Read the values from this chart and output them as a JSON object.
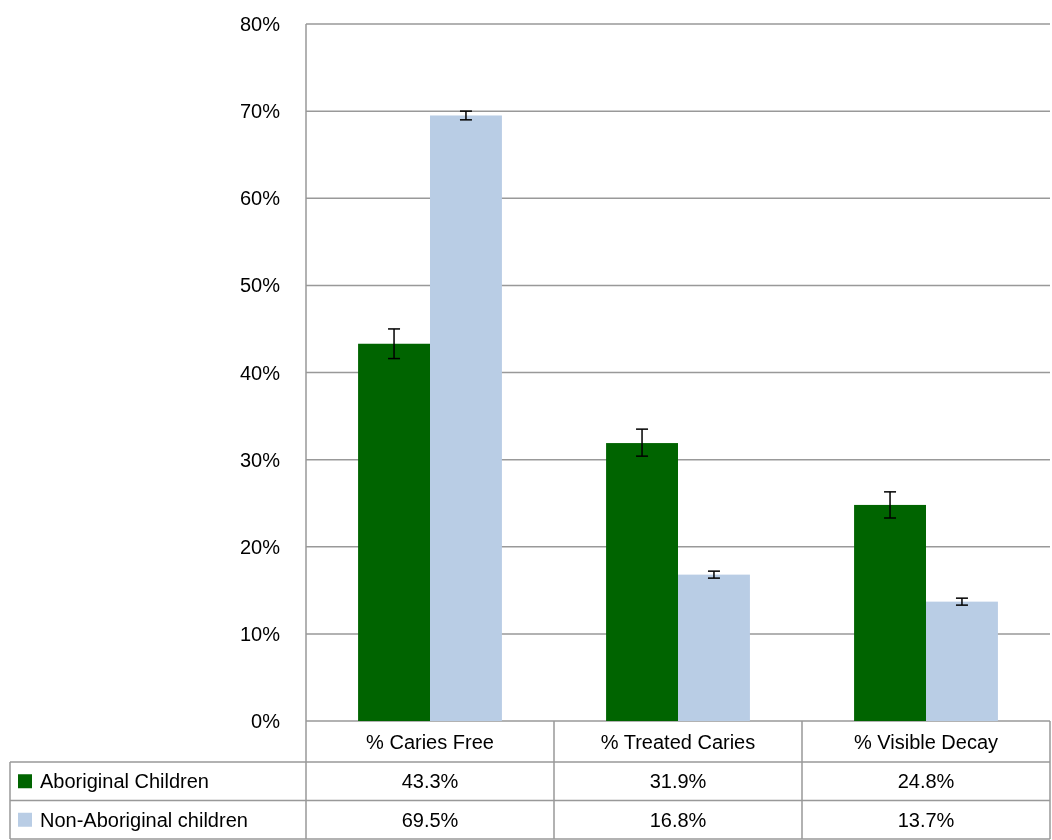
{
  "chart_data": {
    "type": "bar",
    "categories": [
      "% Caries Free",
      "% Treated Caries",
      "% Visible Decay"
    ],
    "series": [
      {
        "name": "Aboriginal Children",
        "color": "#006400",
        "values": [
          43.3,
          31.9,
          24.8
        ],
        "errors": [
          1.7,
          [
            30.4,
            33.5
          ],
          1.5
        ],
        "value_labels": [
          "43.3%",
          "31.9%",
          "24.8%"
        ]
      },
      {
        "name": "Non-Aboriginal children",
        "color": "#b9cde5",
        "values": [
          69.5,
          16.8,
          13.7
        ],
        "errors": [
          0.5,
          0.4,
          0.4
        ],
        "value_labels": [
          "69.5%",
          "16.8%",
          "13.7%"
        ]
      }
    ],
    "ylim": [
      0,
      80
    ],
    "yticks": [
      {
        "value": 0,
        "label": "0%"
      },
      {
        "value": 10,
        "label": "10%"
      },
      {
        "value": 20,
        "label": "20%"
      },
      {
        "value": 30,
        "label": "30%"
      },
      {
        "value": 40,
        "label": "40%"
      },
      {
        "value": 50,
        "label": "50%"
      },
      {
        "value": 60,
        "label": "60%"
      },
      {
        "value": 70,
        "label": "70%"
      },
      {
        "value": 80,
        "label": "80%"
      }
    ],
    "grid": "y",
    "legend": "bottom"
  }
}
